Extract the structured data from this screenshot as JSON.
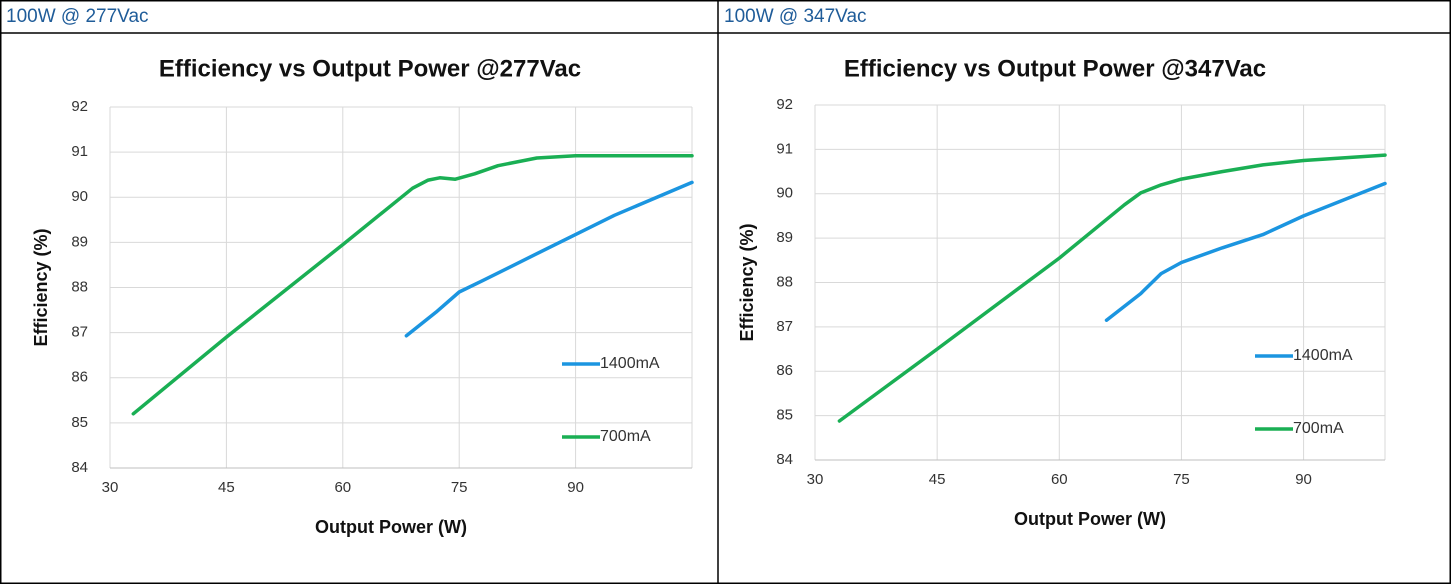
{
  "headers": [
    "100W @ 277Vac",
    "100W @ 347Vac"
  ],
  "chart_data": [
    {
      "type": "line",
      "title": "Efficiency vs Output Power @277Vac",
      "x_label": "Output Power (W)",
      "y_label": "Efficiency (%)",
      "xlim": [
        30,
        105
      ],
      "xticks": [
        30,
        45,
        60,
        75,
        90
      ],
      "ylim": [
        84,
        92
      ],
      "yticks": [
        84,
        85,
        86,
        87,
        88,
        89,
        90,
        91,
        92
      ],
      "grid": true,
      "legend": "lower right",
      "series": [
        {
          "name": "1400mA",
          "color": "#1b95e0",
          "x": [
            68.2,
            72,
            75,
            78,
            85,
            95,
            105
          ],
          "values": [
            86.93,
            87.45,
            87.9,
            88.15,
            88.75,
            89.6,
            90.33
          ]
        },
        {
          "name": "700mA",
          "color": "#1aaf54",
          "x": [
            33,
            45,
            60,
            69,
            71,
            72.5,
            74.5,
            77,
            80,
            85,
            90,
            105
          ],
          "values": [
            85.2,
            86.9,
            88.95,
            90.2,
            90.38,
            90.43,
            90.4,
            90.52,
            90.7,
            90.87,
            90.92,
            90.92
          ]
        }
      ]
    },
    {
      "type": "line",
      "title": "Efficiency vs Output Power @347Vac",
      "x_label": "Output Power (W)",
      "y_label": "Efficiency (%)",
      "xlim": [
        30,
        100
      ],
      "xticks": [
        30,
        45,
        60,
        75,
        90
      ],
      "ylim": [
        84,
        92
      ],
      "yticks": [
        84,
        85,
        86,
        87,
        88,
        89,
        90,
        91,
        92
      ],
      "grid": true,
      "legend": "lower right",
      "series": [
        {
          "name": "1400mA",
          "color": "#1b95e0",
          "x": [
            65.8,
            70,
            72.5,
            75,
            80,
            85,
            90,
            100
          ],
          "values": [
            87.15,
            87.75,
            88.2,
            88.45,
            88.78,
            89.08,
            89.5,
            90.23
          ]
        },
        {
          "name": "700mA",
          "color": "#1aaf54",
          "x": [
            33,
            45,
            60,
            68,
            70,
            72.5,
            75,
            80,
            85,
            90,
            100
          ],
          "values": [
            84.88,
            86.5,
            88.55,
            89.75,
            90.02,
            90.2,
            90.33,
            90.5,
            90.65,
            90.75,
            90.87
          ]
        }
      ]
    }
  ]
}
